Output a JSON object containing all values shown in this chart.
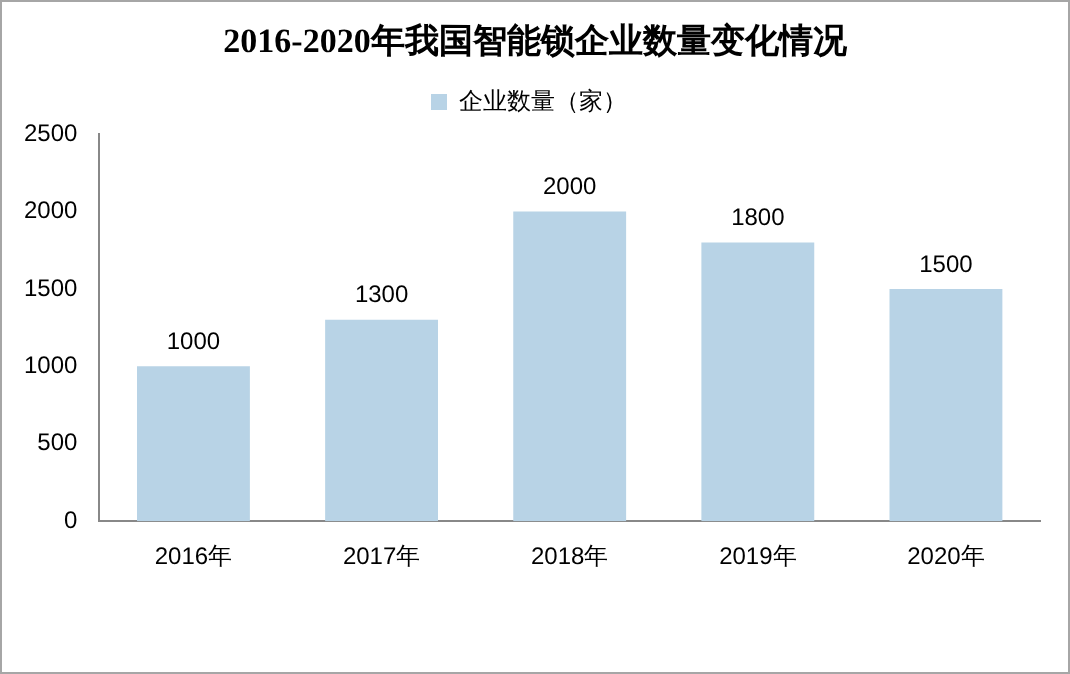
{
  "chart_data": {
    "type": "bar",
    "title": "2016-2020年我国智能锁企业数量变化情况",
    "categories": [
      "2016年",
      "2017年",
      "2018年",
      "2019年",
      "2020年"
    ],
    "series": [
      {
        "name": "企业数量（家）",
        "color": "#b8d3e6",
        "values": [
          1000,
          1300,
          2000,
          1800,
          1500
        ]
      }
    ],
    "ylim": [
      0,
      2500
    ],
    "yticks": [
      0,
      500,
      1000,
      1500,
      2000,
      2500
    ],
    "grid": false,
    "legend": "top",
    "data_labels": true
  }
}
